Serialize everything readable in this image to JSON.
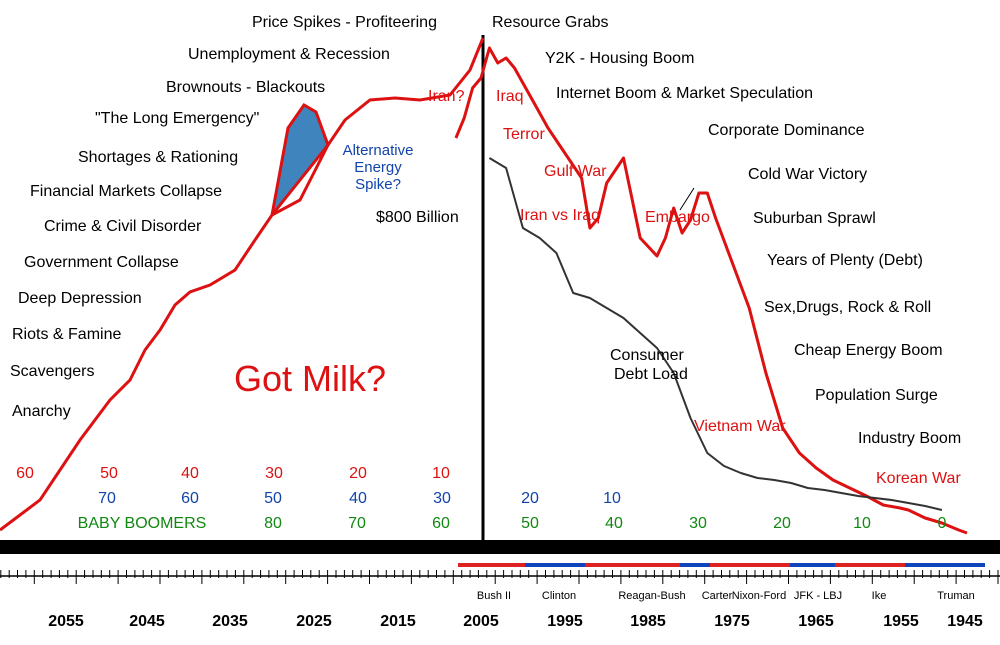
{
  "chart_data": {
    "type": "line",
    "title": "Got Milk?",
    "x_axis": {
      "ticks": [
        "1945",
        "1955",
        "1965",
        "1975",
        "1985",
        "1995",
        "2005",
        "2015",
        "2025",
        "2035",
        "2045",
        "2055"
      ],
      "presidents": [
        "Truman",
        "Ike",
        "JFK - LBJ",
        "Nixon-Ford",
        "Carter",
        "Reagan-Bush",
        "Clinton",
        "Bush II"
      ]
    },
    "series": [
      {
        "name": "",
        "color": "#dd1111",
        "x": [
          1947,
          1948,
          1950,
          1952,
          1954,
          1955,
          1957,
          1959,
          1961,
          1963,
          1965,
          1967,
          1969,
          1971,
          1973,
          1975,
          1977,
          1978,
          1979,
          1980,
          1981,
          1982,
          1983,
          1984,
          1986,
          1988,
          1990,
          1991,
          1992,
          1993,
          1995,
          1997,
          1999,
          2001,
          2002,
          2003,
          2004,
          2005,
          2006,
          2007,
          2008
        ],
        "y": [
          5,
          8,
          15,
          20,
          28,
          30,
          33,
          42,
          50,
          58,
          70,
          85,
          110,
          165,
          230,
          275,
          320,
          345,
          345,
          318,
          305,
          330,
          300,
          282,
          300,
          380,
          355,
          320,
          310,
          360,
          385,
          410,
          440,
          470,
          480,
          475,
          490,
          460,
          450,
          420,
          400
        ]
      },
      {
        "name": "Consumer Debt Load",
        "color": "#333333",
        "x": [
          1950,
          1952,
          1954,
          1956,
          1958,
          1960,
          1962,
          1964,
          1966,
          1968,
          1970,
          1972,
          1974,
          1976,
          1978,
          1980,
          1982,
          1984,
          1986,
          1988,
          1990,
          1992,
          1994,
          1996,
          1998,
          2000,
          2002,
          2004
        ],
        "y": [
          28,
          32,
          35,
          38,
          40,
          42,
          45,
          48,
          50,
          55,
          58,
          60,
          65,
          72,
          85,
          120,
          165,
          190,
          205,
          220,
          230,
          240,
          245,
          285,
          300,
          310,
          370,
          380
        ]
      }
    ],
    "inflection_shading": {
      "label": "Alternative Energy Spike?",
      "color": "#1f6fb2"
    },
    "age_rows": [
      {
        "color": "#dd1111",
        "labels": [
          "60",
          "50",
          "40",
          "30",
          "20",
          "10"
        ]
      },
      {
        "color": "#1144aa",
        "labels": [
          "70",
          "60",
          "50",
          "40",
          "30",
          "20",
          "10"
        ]
      },
      {
        "color": "#118811",
        "labels": [
          "BABY BOOMERS",
          "80",
          "70",
          "60",
          "50",
          "40",
          "30",
          "20",
          "10",
          "0"
        ]
      }
    ],
    "left_labels": [
      "Price Spikes - Profiteering",
      "Unemployment & Recession",
      "Brownouts - Blackouts",
      "\"The Long Emergency\"",
      "Shortages & Rationing",
      "Financial Markets Collapse",
      "Crime & Civil Disorder",
      "Government Collapse",
      "Deep Depression",
      "Riots & Famine",
      "Scavengers",
      "Anarchy"
    ],
    "right_labels": [
      "Resource Grabs",
      "Y2K - Housing Boom",
      "Internet Boom & Market Speculation",
      "Corporate Dominance",
      "Cold War Victory",
      "Suburban Sprawl",
      "Years of Plenty (Debt)",
      "Sex,Drugs, Rock & Roll",
      "Cheap Energy Boom",
      "Population Surge",
      "Industry Boom"
    ],
    "red_labels": [
      "Iran?",
      "Iraq",
      "Terror",
      "Gulf War",
      "Iran vs Iraq",
      "Embargo",
      "Vietnam War",
      "Korean War"
    ],
    "debt_label": "$800 Billion",
    "debt_curve_label_1": "Consumer",
    "debt_curve_label_2": "Debt Load",
    "energy_label": [
      "Alternative",
      "Energy",
      "Spike?"
    ]
  }
}
